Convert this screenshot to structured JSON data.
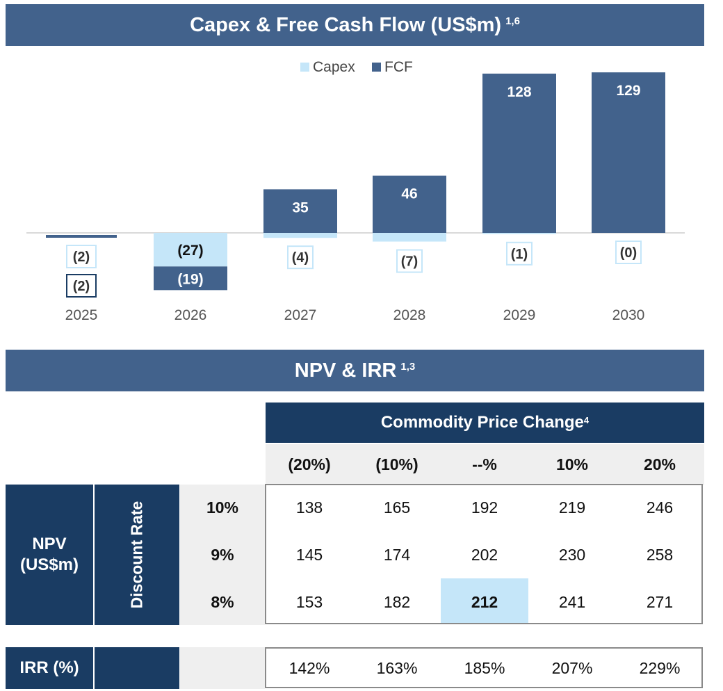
{
  "chart_title": {
    "text": "Capex & Free Cash Flow (US$m)",
    "note": "1,6"
  },
  "chart_data": {
    "type": "bar",
    "categories": [
      "2025",
      "2026",
      "2027",
      "2028",
      "2029",
      "2030"
    ],
    "series": [
      {
        "name": "Capex",
        "values": [
          -2,
          -27,
          -4,
          -7,
          -1,
          0
        ],
        "labels": [
          "(2)",
          "(27)",
          "(4)",
          "(7)",
          "(1)",
          "(0)"
        ],
        "color": "#c5e6f9"
      },
      {
        "name": "FCF",
        "values": [
          -2,
          -19,
          35,
          46,
          128,
          129
        ],
        "labels": [
          "(2)",
          "(19)",
          "35",
          "46",
          "128",
          "129"
        ],
        "color": "#42628c"
      }
    ],
    "legend_position": "top",
    "grid": false
  },
  "table_title": {
    "text": "NPV & IRR",
    "note": "1,3"
  },
  "table": {
    "header": {
      "text": "Commodity Price Change",
      "note": "4"
    },
    "columns": [
      "(20%)",
      "(10%)",
      "--%",
      "10%",
      "20%"
    ],
    "npv_label_line1": "NPV",
    "npv_label_line2": "(US$m)",
    "discount_label": "Discount Rate",
    "rows": [
      {
        "rate": "10%",
        "values": [
          "138",
          "165",
          "192",
          "219",
          "246"
        ]
      },
      {
        "rate": "9%",
        "values": [
          "145",
          "174",
          "202",
          "230",
          "258"
        ]
      },
      {
        "rate": "8%",
        "values": [
          "153",
          "182",
          "212",
          "241",
          "271"
        ]
      }
    ],
    "irr_label": "IRR (%)",
    "irr_values": [
      "142%",
      "163%",
      "185%",
      "207%",
      "229%"
    ],
    "highlight_color": "#c5e6f9"
  }
}
